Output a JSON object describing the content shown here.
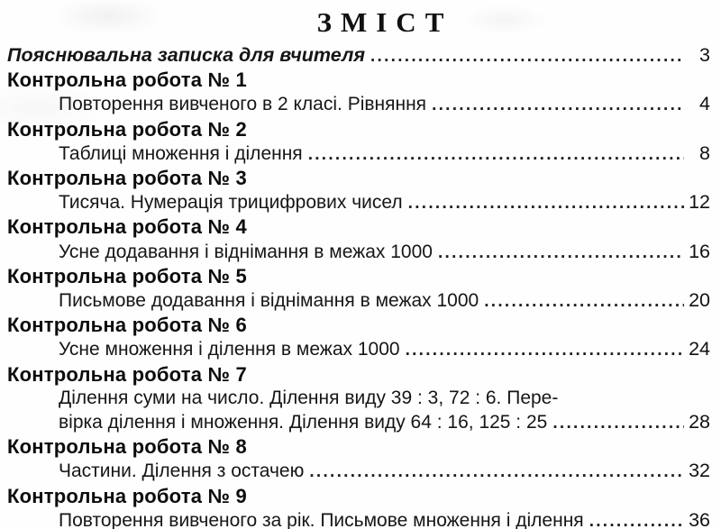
{
  "toc": {
    "title": "ЗМІСТ",
    "intro": {
      "label": "Пояснювальна записка для вчителя",
      "page": "3"
    },
    "sections": [
      {
        "heading": "Контрольна робота № 1",
        "item": "Повторення вивченого в 2 класі. Рівняння",
        "page": "4"
      },
      {
        "heading": "Контрольна робота № 2",
        "item": "Таблиці множення і ділення",
        "page": "8"
      },
      {
        "heading": "Контрольна робота № 3",
        "item": "Тисяча. Нумерація трицифрових чисел",
        "page": "12"
      },
      {
        "heading": "Контрольна робота № 4",
        "item": "Усне додавання і віднімання в межах 1000",
        "page": "16"
      },
      {
        "heading": "Контрольна робота № 5",
        "item": "Письмове додавання і віднімання в межах 1000",
        "page": "20"
      },
      {
        "heading": "Контрольна робота № 6",
        "item": "Усне множення і ділення в межах 1000",
        "page": "24"
      },
      {
        "heading": "Контрольна робота № 7",
        "item_line1": "Ділення суми на число. Ділення виду 39 : 3, 72 : 6. Пере-",
        "item_line2": "вірка ділення і множення. Ділення виду 64 : 16, 125 : 25",
        "page": "28"
      },
      {
        "heading": "Контрольна робота № 8",
        "item": "Частини. Ділення з остачею",
        "page": "32"
      },
      {
        "heading": "Контрольна робота № 9",
        "item": "Повторення вивченого за рік. Письмове множення і ділення",
        "page": "36"
      }
    ],
    "text_color": "#161616",
    "background_color": "#fefefe"
  }
}
